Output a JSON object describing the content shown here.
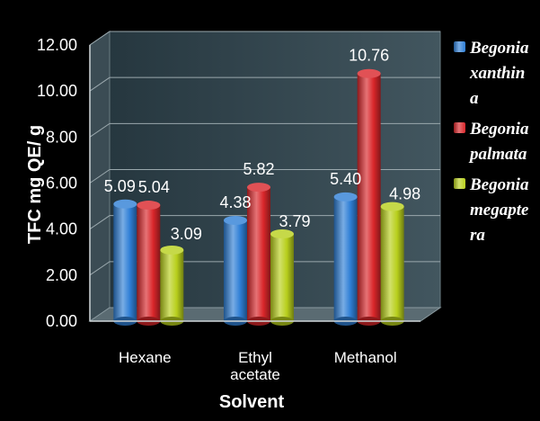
{
  "chart_data": {
    "type": "bar",
    "title": "",
    "xlabel": "Solvent",
    "ylabel": "TFC mg QE/ g",
    "categories": [
      [
        "Hexane"
      ],
      [
        "Ethyl",
        "acetate"
      ],
      [
        "Methanol"
      ]
    ],
    "ylim": [
      0,
      12
    ],
    "ytick_step": 2,
    "ytick_labels": [
      "0.00",
      "2.00",
      "4.00",
      "6.00",
      "8.00",
      "10.00",
      "12.00"
    ],
    "grid": true,
    "legend_position": "right",
    "series": [
      {
        "name": "Begonia xanthina",
        "values": [
          5.09,
          4.38,
          5.4
        ],
        "labels": [
          "5.09",
          "4.38",
          "5.40"
        ],
        "color": "#2f7fd6"
      },
      {
        "name": "Begonia palmata",
        "values": [
          5.04,
          5.82,
          10.76
        ],
        "labels": [
          "5.04",
          "5.82",
          "10.76"
        ],
        "color": "#d9262a"
      },
      {
        "name": "Begonia megaptera",
        "values": [
          3.09,
          3.79,
          4.98
        ],
        "labels": [
          "3.09",
          "3.79",
          "4.98"
        ],
        "color": "#b8cf1c"
      }
    ]
  }
}
